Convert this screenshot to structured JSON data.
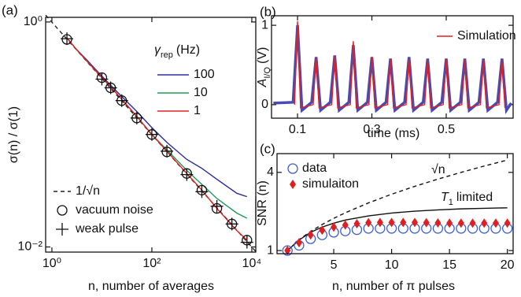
{
  "chart_data": [
    {
      "type": "line",
      "label": "(a)",
      "xlabel": "n, number of averages",
      "ylabel": "σ(n) / σ(1)",
      "xlog": true,
      "ylog": true,
      "xlim": [
        0.75,
        12000
      ],
      "ylim": [
        0.009,
        1.1
      ],
      "xticks": [
        {
          "value": 1,
          "label": "10⁰"
        },
        {
          "value": 100,
          "label": "10²"
        },
        {
          "value": 10000,
          "label": "10⁴"
        }
      ],
      "yticks": [
        {
          "value": 1,
          "label": "10⁰"
        },
        {
          "value": 0.01,
          "label": "10⁻²"
        }
      ],
      "legend_title": {
        "base": "γ",
        "sub": "rep",
        "rest": "(Hz)"
      },
      "series": [
        {
          "name": "1/√n",
          "color": "#222222",
          "style": "line",
          "dash": true,
          "legend": "lower left",
          "x": [
            0.75,
            12000
          ],
          "values": [
            1.15,
            0.0091
          ]
        },
        {
          "name": "100",
          "color": "#2b2b9f",
          "style": "line",
          "legend": "upper right",
          "x": [
            2,
            3,
            5,
            10,
            20,
            50,
            100,
            200,
            500,
            1000,
            2000,
            5000,
            8000
          ],
          "values": [
            0.72,
            0.58,
            0.46,
            0.33,
            0.24,
            0.16,
            0.115,
            0.085,
            0.06,
            0.05,
            0.04,
            0.03,
            0.028
          ]
        },
        {
          "name": "10",
          "color": "#1f9c5a",
          "style": "line",
          "legend": "upper right",
          "x": [
            2,
            3,
            5,
            10,
            20,
            50,
            100,
            200,
            500,
            1000,
            2000,
            5000,
            8000
          ],
          "values": [
            0.72,
            0.58,
            0.45,
            0.32,
            0.23,
            0.145,
            0.1,
            0.073,
            0.048,
            0.036,
            0.027,
            0.02,
            0.018
          ]
        },
        {
          "name": "1",
          "color": "#e02020",
          "style": "line",
          "legend": "upper right",
          "x": [
            2,
            3,
            5,
            10,
            20,
            50,
            100,
            200,
            500,
            1000,
            2000,
            5000,
            8000
          ],
          "values": [
            0.72,
            0.58,
            0.45,
            0.32,
            0.23,
            0.145,
            0.1,
            0.071,
            0.045,
            0.032,
            0.022,
            0.014,
            0.0115
          ]
        },
        {
          "name": "vacuum noise",
          "color": "#111111",
          "style": "scatter",
          "marker": "circle",
          "legend": "lower left",
          "x": [
            2,
            10,
            15,
            25,
            50,
            100,
            200,
            500,
            1000,
            2000,
            4000,
            8000
          ],
          "values": [
            0.7,
            0.32,
            0.26,
            0.2,
            0.14,
            0.1,
            0.07,
            0.045,
            0.032,
            0.022,
            0.016,
            0.0115
          ]
        },
        {
          "name": "weak pulse",
          "color": "#111111",
          "style": "scatter",
          "marker": "plus",
          "legend": "lower left",
          "x": [
            2,
            10,
            15,
            25,
            50,
            100,
            200,
            500,
            1000,
            2000,
            4000,
            8000
          ],
          "values": [
            0.71,
            0.31,
            0.26,
            0.2,
            0.14,
            0.1,
            0.071,
            0.044,
            0.031,
            0.023,
            0.016,
            0.011
          ]
        }
      ]
    },
    {
      "type": "line",
      "label": "(b)",
      "xlabel": "time (ms)",
      "ylabel": {
        "base": "A",
        "sub": "I/Q",
        "rest": "(V)"
      },
      "xlim": [
        0.03,
        0.68
      ],
      "ylim": [
        -0.17,
        1.12
      ],
      "xticks": [
        0.1,
        0.3,
        0.5
      ],
      "yticks": [
        0,
        1
      ],
      "series": [
        {
          "color": "#4a4ab0",
          "style": "line",
          "width": 3.5,
          "x": [
            0.035,
            0.088,
            0.1,
            0.112,
            0.138,
            0.15,
            0.162,
            0.188,
            0.2,
            0.212,
            0.238,
            0.25,
            0.262,
            0.288,
            0.3,
            0.312,
            0.338,
            0.35,
            0.362,
            0.388,
            0.4,
            0.412,
            0.438,
            0.45,
            0.462,
            0.488,
            0.5,
            0.512,
            0.538,
            0.55,
            0.562,
            0.588,
            0.6,
            0.612,
            0.638,
            0.65,
            0.662,
            0.675
          ],
          "values": [
            0.02,
            0.03,
            1.0,
            -0.07,
            0.03,
            0.6,
            -0.07,
            0.03,
            0.62,
            -0.07,
            0.03,
            0.75,
            -0.07,
            0.03,
            0.6,
            -0.07,
            0.03,
            0.58,
            -0.07,
            0.03,
            0.6,
            -0.07,
            0.03,
            0.58,
            -0.07,
            0.03,
            0.58,
            -0.07,
            0.03,
            0.58,
            -0.07,
            0.03,
            0.58,
            -0.07,
            0.03,
            0.58,
            -0.07,
            0.02
          ]
        },
        {
          "name": "Simulation",
          "color": "#e02020",
          "style": "line",
          "width": 1.4,
          "legend": "upper right",
          "x": [
            0.092,
            0.1,
            0.108,
            0.142,
            0.15,
            0.158,
            0.192,
            0.2,
            0.208,
            0.242,
            0.25,
            0.258,
            0.292,
            0.3,
            0.308,
            0.342,
            0.35,
            0.358,
            0.392,
            0.4,
            0.408,
            0.442,
            0.45,
            0.458,
            0.492,
            0.5,
            0.508,
            0.542,
            0.55,
            0.558,
            0.592,
            0.6,
            0.608,
            0.642,
            0.65,
            0.658
          ],
          "values": [
            0,
            1.05,
            -0.04,
            0,
            0.6,
            -0.04,
            0,
            0.62,
            -0.04,
            0,
            0.8,
            -0.04,
            0,
            0.6,
            -0.04,
            0,
            0.58,
            -0.04,
            0,
            0.58,
            -0.04,
            0,
            0.56,
            -0.04,
            0,
            0.58,
            -0.04,
            0,
            0.56,
            -0.04,
            0,
            0.56,
            -0.04,
            0,
            0.56,
            -0.04
          ]
        }
      ]
    },
    {
      "type": "line",
      "label": "(c)",
      "xlabel": "n, number of π pulses",
      "ylabel": "SNR (n)",
      "xlim": [
        0.1,
        20.5
      ],
      "ylim": [
        0.88,
        4.72
      ],
      "xticks": [
        5,
        10,
        15,
        20
      ],
      "yticks": [
        1,
        4
      ],
      "annotations": [
        "√n",
        {
          "base": "T",
          "sub": "1",
          "rest": "limited"
        }
      ],
      "series": [
        {
          "color": "#111111",
          "style": "line",
          "dash": true,
          "x": [
            1,
            2,
            3,
            4,
            5,
            6,
            8,
            10,
            12,
            14,
            16,
            18,
            20
          ],
          "values": [
            1,
            1.414,
            1.732,
            2,
            2.236,
            2.449,
            2.828,
            3.162,
            3.464,
            3.742,
            4,
            4.243,
            4.472
          ]
        },
        {
          "color": "#111111",
          "style": "line",
          "x": [
            1,
            2,
            3,
            4,
            5,
            6,
            8,
            10,
            12,
            14,
            16,
            18,
            20
          ],
          "values": [
            1,
            1.4,
            1.7,
            1.9,
            2.05,
            2.17,
            2.33,
            2.44,
            2.51,
            2.56,
            2.6,
            2.62,
            2.64
          ]
        },
        {
          "name": "data",
          "color": "#3a5fd0",
          "style": "scatter",
          "marker": "circle",
          "legend": "upper left",
          "x": [
            1,
            2,
            3,
            4,
            5,
            6,
            7,
            8,
            9,
            10,
            11,
            12,
            13,
            14,
            15,
            16,
            17,
            18,
            19,
            20
          ],
          "values": [
            1.0,
            1.2,
            1.45,
            1.6,
            1.7,
            1.75,
            1.8,
            1.85,
            1.85,
            1.85,
            1.85,
            1.85,
            1.85,
            1.85,
            1.85,
            1.85,
            1.85,
            1.85,
            1.85,
            1.85
          ]
        },
        {
          "name": "simulaiton",
          "color": "#e02020",
          "style": "scatter",
          "marker": "diamond",
          "legend": "upper left",
          "x": [
            1,
            2,
            3,
            4,
            5,
            6,
            7,
            8,
            9,
            10,
            11,
            12,
            13,
            14,
            15,
            16,
            17,
            18,
            19,
            20
          ],
          "values": [
            1.0,
            1.3,
            1.6,
            1.78,
            1.9,
            1.98,
            2.03,
            2.07,
            2.08,
            2.08,
            2.08,
            2.08,
            2.07,
            2.06,
            2.05,
            2.05,
            2.05,
            2.05,
            2.05,
            2.05
          ]
        }
      ]
    }
  ]
}
